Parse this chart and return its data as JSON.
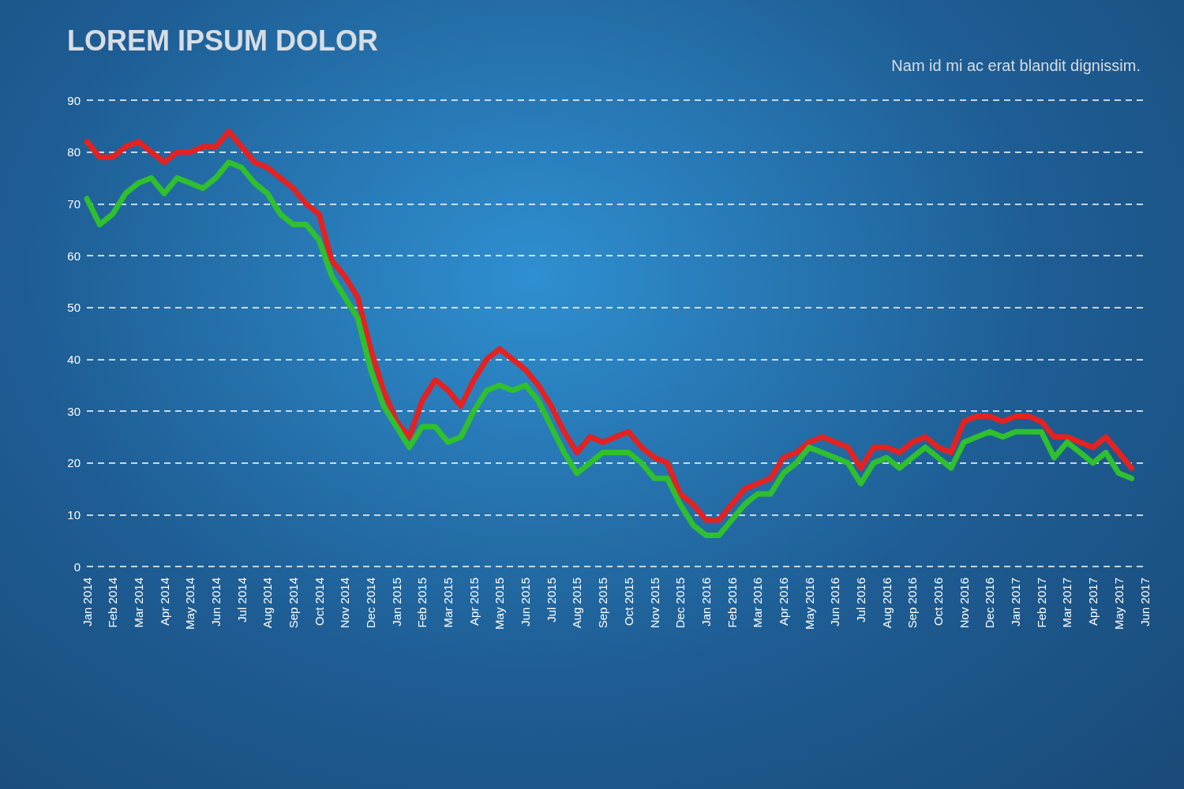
{
  "chart_data": {
    "type": "line",
    "title": "LOREM IPSUM DOLOR",
    "subtitle": "Nam id mi ac erat blandit dignissim.",
    "categories": [
      "Jan 2014",
      null,
      "Feb 2014",
      null,
      "Mar 2014",
      null,
      "Apr 2014",
      null,
      "May 2014",
      null,
      "Jun 2014",
      null,
      "Jul 2014",
      null,
      "Aug 2014",
      null,
      "Sep 2014",
      null,
      "Oct 2014",
      null,
      "Nov 2014",
      null,
      "Dec 2014",
      null,
      "Jan 2015",
      null,
      "Feb 2015",
      null,
      "Mar 2015",
      null,
      "Apr 2015",
      null,
      "May 2015",
      null,
      "Jun 2015",
      null,
      "Jul 2015",
      null,
      "Aug 2015",
      null,
      "Sep 2015",
      null,
      "Oct 2015",
      null,
      "Nov 2015",
      null,
      "Dec 2015",
      null,
      "Jan 2016",
      null,
      "Feb 2016",
      null,
      "Mar 2016",
      null,
      "Apr 2016",
      null,
      "May 2016",
      null,
      "Jun 2016",
      null,
      "Jul 2016",
      null,
      "Aug 2016",
      null,
      "Sep 2016",
      null,
      "Oct 2016",
      null,
      "Nov 2016",
      null,
      "Dec 2016",
      null,
      "Jan 2017",
      null,
      "Feb 2017",
      null,
      "Mar 2017",
      null,
      "Apr 2017",
      null,
      "May 2017",
      null,
      "Jun 2017"
    ],
    "series": [
      {
        "color": "#e32222",
        "values": [
          82,
          79,
          79,
          81,
          82,
          80,
          78,
          80,
          80,
          81,
          81,
          84,
          81,
          78,
          77,
          75,
          73,
          70,
          68,
          59,
          56,
          52,
          42,
          34,
          28,
          25,
          32,
          36,
          34,
          31,
          36,
          40,
          42,
          40,
          38,
          35,
          31,
          26,
          22,
          25,
          24,
          25,
          26,
          23,
          21,
          20,
          14,
          12,
          9,
          9,
          12,
          15,
          16,
          17,
          21,
          22,
          24,
          25,
          24,
          23,
          19,
          23,
          23,
          22,
          24,
          25,
          23,
          22,
          28,
          29,
          29,
          28,
          29,
          29,
          28,
          25,
          25,
          24,
          23,
          25,
          22,
          19,
          null
        ]
      },
      {
        "color": "#2fbf2f",
        "values": [
          71,
          66,
          68,
          72,
          74,
          75,
          72,
          75,
          74,
          73,
          75,
          78,
          77,
          74,
          72,
          68,
          66,
          66,
          63,
          56,
          52,
          48,
          38,
          31,
          27,
          23,
          27,
          27,
          24,
          25,
          30,
          34,
          35,
          34,
          35,
          32,
          27,
          22,
          18,
          20,
          22,
          22,
          22,
          20,
          17,
          17,
          12,
          8,
          6,
          6,
          9,
          12,
          14,
          14,
          18,
          20,
          23,
          22,
          21,
          20,
          16,
          20,
          21,
          19,
          21,
          23,
          21,
          19,
          24,
          25,
          26,
          25,
          26,
          26,
          26,
          21,
          24,
          22,
          20,
          22,
          18,
          17,
          null
        ]
      }
    ],
    "ylim": [
      0,
      90
    ],
    "yticks": [
      0,
      10,
      20,
      30,
      40,
      50,
      60,
      70,
      80,
      90
    ],
    "grid": "y",
    "marker": "none",
    "line_style": "solid"
  }
}
